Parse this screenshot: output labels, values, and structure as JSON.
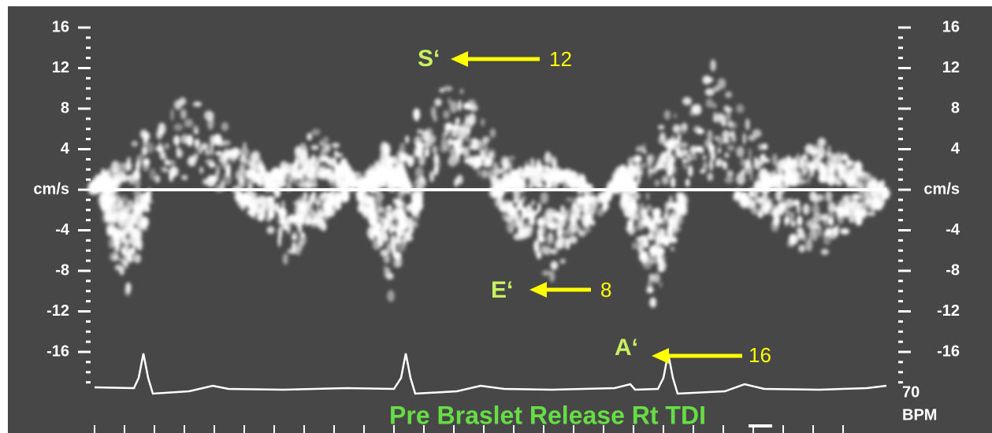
{
  "axis_left": {
    "labels": [
      "16",
      "12",
      "8",
      "4",
      "cm/s",
      "-4",
      "-8",
      "-12",
      "-16"
    ]
  },
  "axis_right": {
    "labels": [
      "16",
      "12",
      "8",
      "4",
      "cm/s",
      "-4",
      "-8",
      "-12",
      "-16"
    ]
  },
  "heart_rate": {
    "value": "70",
    "unit": "BPM"
  },
  "annotations": [
    {
      "label": "S‘",
      "value": "12"
    },
    {
      "label": "E‘",
      "value": "8"
    },
    {
      "label": "A‘",
      "value": "16"
    }
  ],
  "caption": "Pre Braslet Release Rt TDI"
}
